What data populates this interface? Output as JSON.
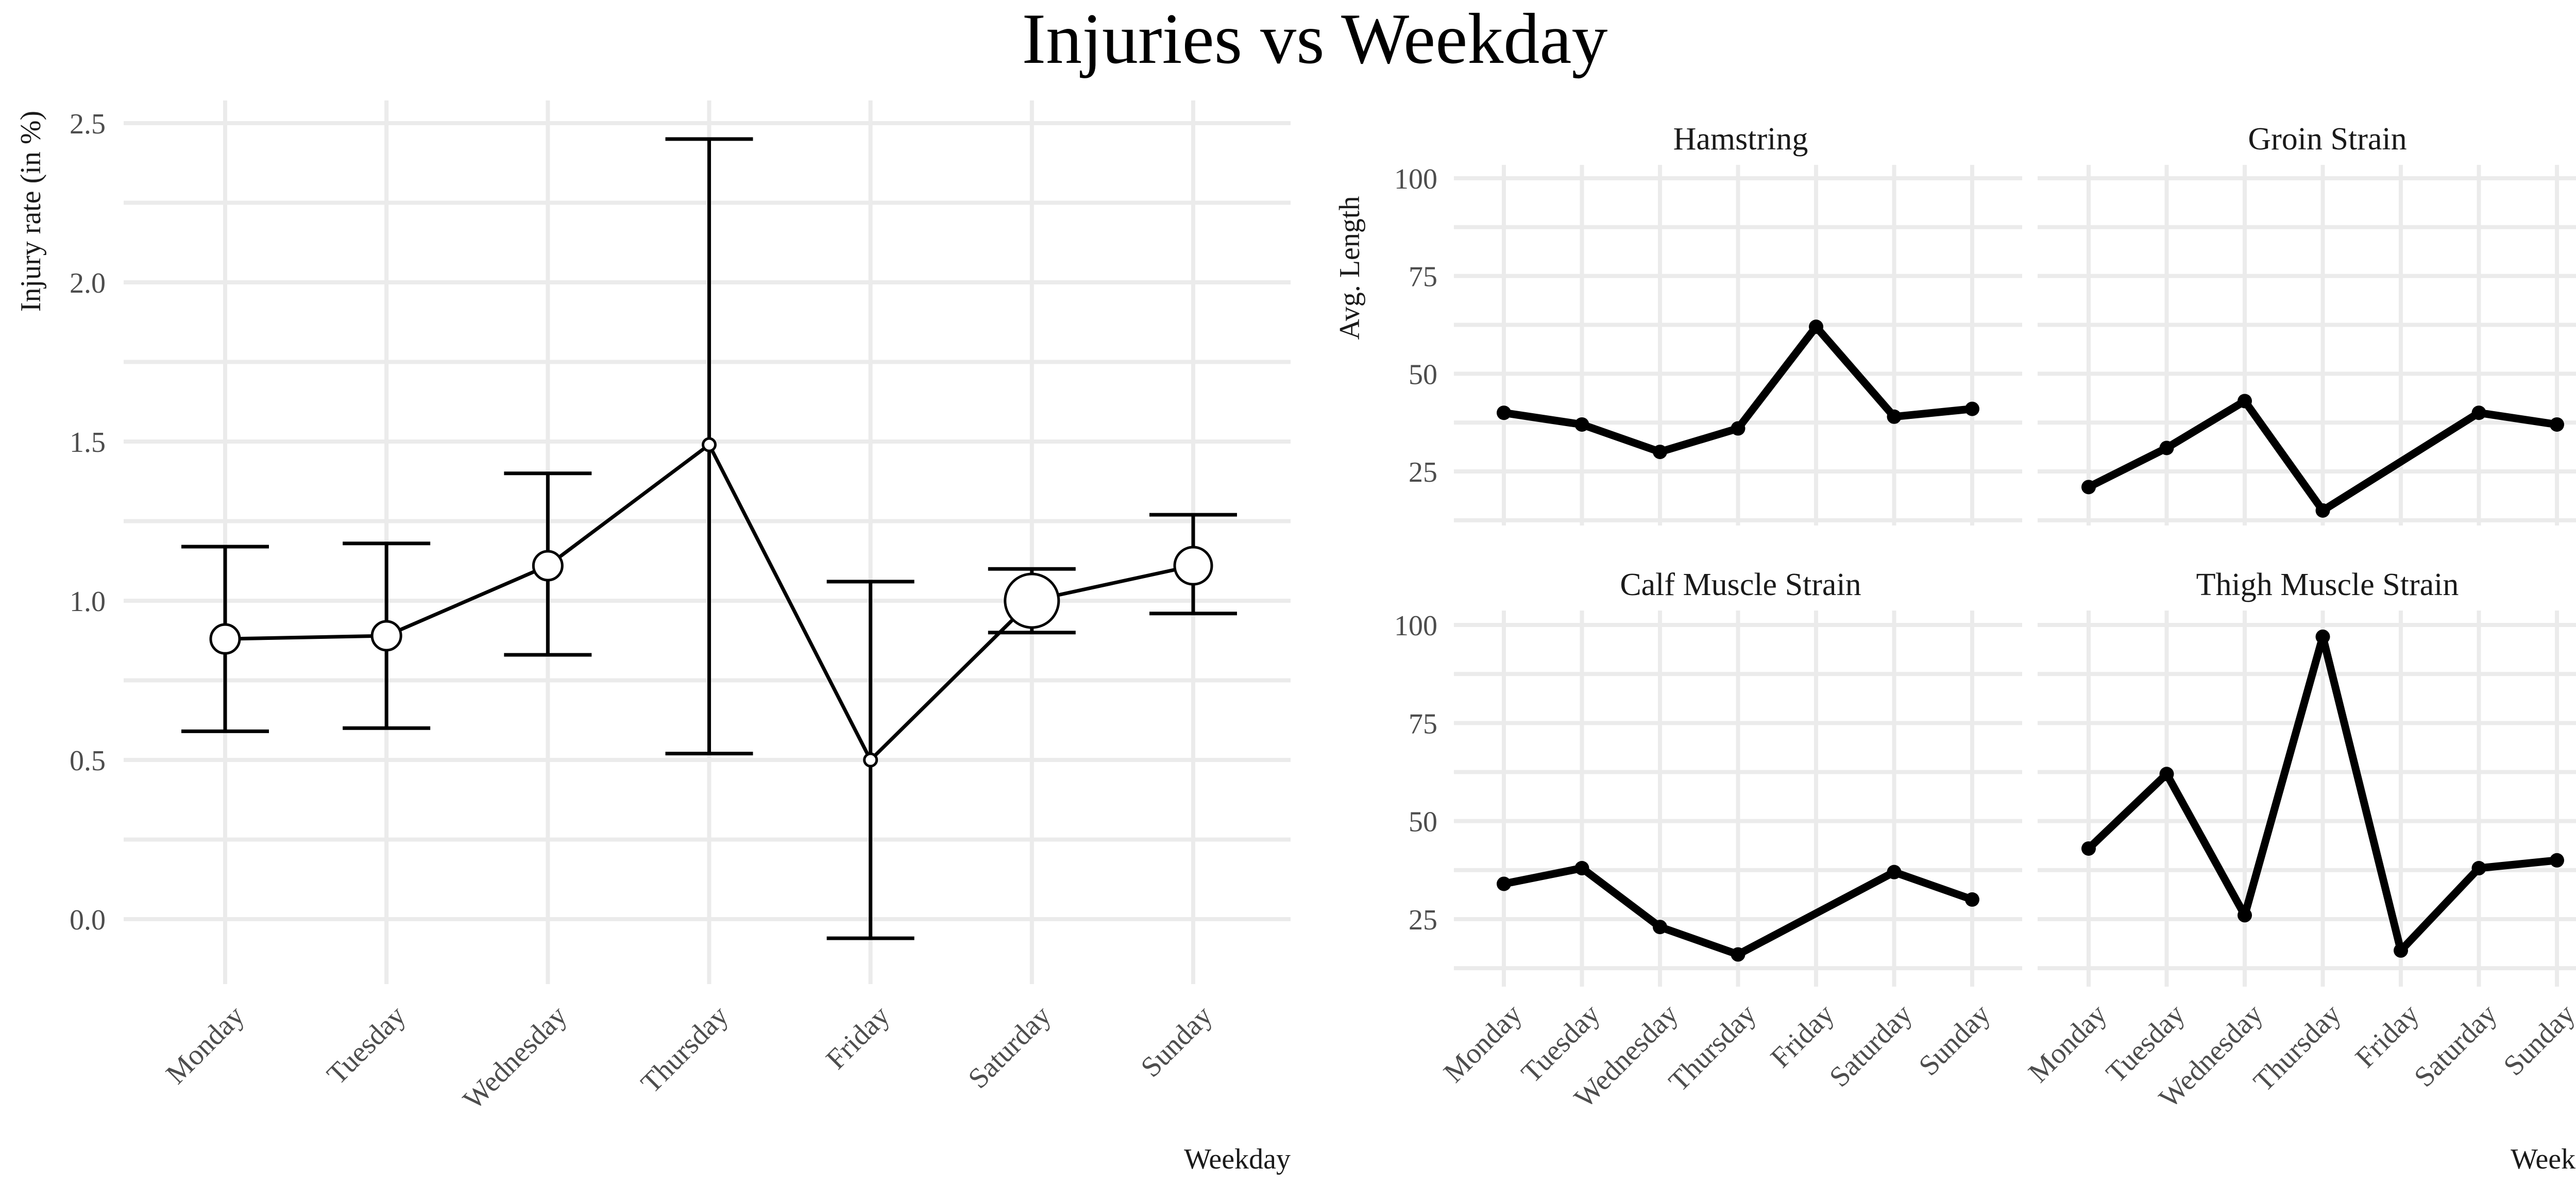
{
  "title": "Injuries vs Weekday",
  "chart_data": [
    {
      "type": "scatter",
      "subtype": "point-with-errorbars-and-line",
      "xlabel": "Weekday",
      "ylabel": "Injury rate (in %)",
      "categories": [
        "Monday",
        "Tuesday",
        "Wednesday",
        "Thursday",
        "Friday",
        "Saturday",
        "Sunday"
      ],
      "ylim": [
        -0.15,
        2.55
      ],
      "yticks": [
        0.0,
        0.5,
        1.0,
        1.5,
        2.0,
        2.5
      ],
      "ytick_labels": [
        "0.0",
        "0.5",
        "1.0",
        "1.5",
        "2.0",
        "2.5"
      ],
      "grid": true,
      "series": [
        {
          "values": [
            0.88,
            0.89,
            1.11,
            1.49,
            0.5,
            1.0,
            1.11
          ],
          "lower": [
            0.59,
            0.6,
            0.83,
            0.52,
            -0.06,
            0.9,
            0.96
          ],
          "upper": [
            1.17,
            1.18,
            1.4,
            2.45,
            1.06,
            1.1,
            1.27
          ],
          "point_size": [
            3,
            3,
            3,
            1,
            1,
            5,
            4
          ]
        }
      ],
      "colors": {
        "line": "#000000",
        "marker_fill": "#ffffff"
      }
    },
    {
      "type": "line",
      "facets": true,
      "xlabel": "Weekday",
      "ylabel": "Avg. Length",
      "categories": [
        "Monday",
        "Tuesday",
        "Wednesday",
        "Thursday",
        "Friday",
        "Saturday",
        "Sunday"
      ],
      "ylim": [
        10,
        102
      ],
      "yticks": [
        25,
        50,
        75,
        100
      ],
      "ytick_labels": [
        "25",
        "50",
        "75",
        "100"
      ],
      "grid": true,
      "panels": [
        {
          "title": "Hamstring",
          "values": [
            40,
            37,
            30,
            36,
            62,
            39,
            41
          ]
        },
        {
          "title": "Groin Strain",
          "values": [
            21,
            31,
            43,
            15,
            null,
            40,
            37
          ]
        },
        {
          "title": "Calf Muscle Strain",
          "values": [
            34,
            38,
            23,
            16,
            null,
            37,
            30
          ]
        },
        {
          "title": "Thigh Muscle Strain",
          "values": [
            43,
            62,
            26,
            97,
            17,
            38,
            40
          ]
        }
      ],
      "colors": {
        "line": "#000000"
      }
    }
  ]
}
